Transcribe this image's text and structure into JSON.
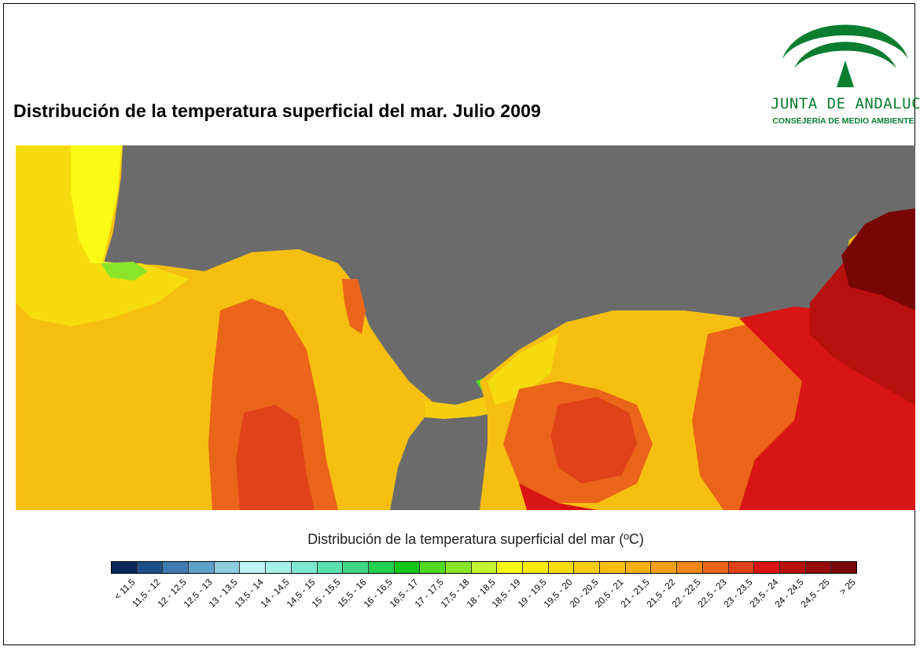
{
  "header": {
    "title": "Distribución de la temperatura superficial del mar. Julio 2009"
  },
  "logo": {
    "name": "JUNTA DE ANDALUCIA",
    "subtitle": "CONSEJERÍA DE MEDIO AMBIENTE",
    "icon": "andalucia-arches-icon",
    "color": "#0a7d2f"
  },
  "map": {
    "land_color": "#6b6b6b",
    "icon": "sea-surface-temperature-map"
  },
  "legend": {
    "title": "Distribución de la temperatura superficial del mar (ºC)",
    "items": [
      {
        "label": "< 11,5",
        "color": "#0b2a5c"
      },
      {
        "label": "11,5 - 12",
        "color": "#1f4f8a"
      },
      {
        "label": "12 - 12,5",
        "color": "#3f7bb0"
      },
      {
        "label": "12,5 - 13",
        "color": "#5ea1c9"
      },
      {
        "label": "13 - 13,5",
        "color": "#8ecbe0"
      },
      {
        "label": "13,5 - 14",
        "color": "#bff3f5"
      },
      {
        "label": "14 - 14,5",
        "color": "#a6f0e6"
      },
      {
        "label": "14,5 - 15",
        "color": "#7ee8cf"
      },
      {
        "label": "15 - 15,5",
        "color": "#5ce0ae"
      },
      {
        "label": "15,5 - 16",
        "color": "#3fd685"
      },
      {
        "label": "16 - 16,5",
        "color": "#22cf4f"
      },
      {
        "label": "16,5 - 17",
        "color": "#12c61b"
      },
      {
        "label": "17 - 17,5",
        "color": "#4fd91f"
      },
      {
        "label": "17,5 - 18",
        "color": "#8ae52a"
      },
      {
        "label": "18 - 18,5",
        "color": "#c3f22e"
      },
      {
        "label": "18,5 - 19",
        "color": "#fafa14"
      },
      {
        "label": "19 - 19,5",
        "color": "#f7ea0c"
      },
      {
        "label": "19,5 - 20",
        "color": "#f6dc0e"
      },
      {
        "label": "20 - 20,5",
        "color": "#f6cd10"
      },
      {
        "label": "20,5 - 21",
        "color": "#f6bf10"
      },
      {
        "label": "21 - 21,5",
        "color": "#f6b010"
      },
      {
        "label": "21,5 - 22",
        "color": "#f5a013"
      },
      {
        "label": "22 - 22,5",
        "color": "#f28617"
      },
      {
        "label": "22,5 - 23",
        "color": "#ea6419"
      },
      {
        "label": "23 - 23,5",
        "color": "#e0421a"
      },
      {
        "label": "23,5 - 24",
        "color": "#d91414"
      },
      {
        "label": "24 - 24,5",
        "color": "#b80f0f"
      },
      {
        "label": "24,5 - 25",
        "color": "#980a0a"
      },
      {
        "label": "> 25",
        "color": "#7a0505"
      }
    ]
  }
}
